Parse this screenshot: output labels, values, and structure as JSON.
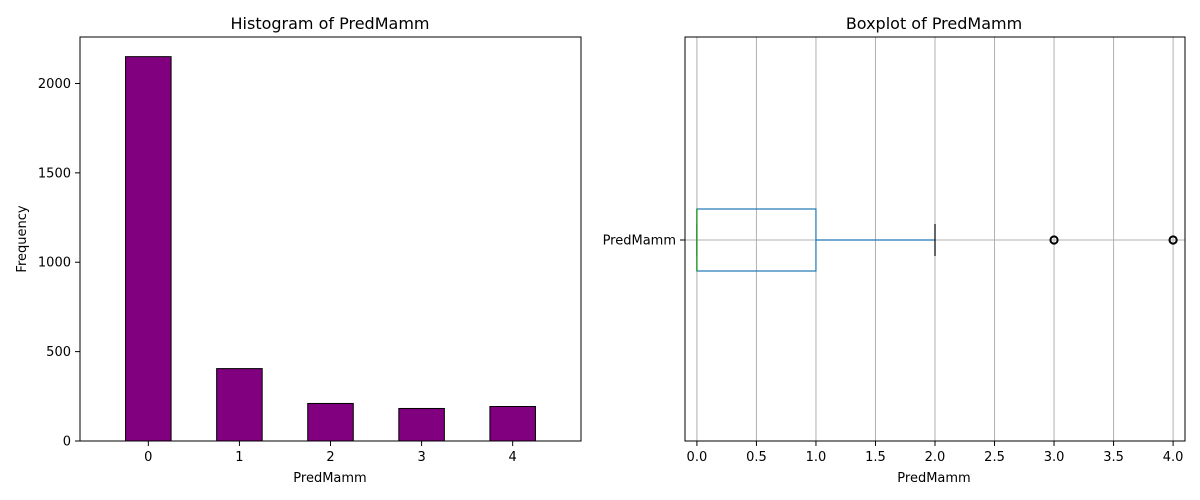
{
  "chart_data": [
    {
      "type": "bar",
      "title": "Histogram of PredMamm",
      "xlabel": "PredMamm",
      "ylabel": "Frequency",
      "categories": [
        "0",
        "1",
        "2",
        "3",
        "4"
      ],
      "values": [
        2150,
        405,
        210,
        182,
        193
      ],
      "ylim": [
        0,
        2260
      ],
      "yticks": [
        0,
        500,
        1000,
        1500,
        2000
      ],
      "bar_color": "#800080",
      "edge_color": "#000000",
      "grid": false
    },
    {
      "type": "boxplot",
      "title": "Boxplot of PredMamm",
      "xlabel": "PredMamm",
      "category_label": "PredMamm",
      "xlim": [
        -0.1,
        4.1
      ],
      "xticks": [
        0.0,
        0.5,
        1.0,
        1.5,
        2.0,
        2.5,
        3.0,
        3.5,
        4.0
      ],
      "xtick_labels": [
        "0.0",
        "0.5",
        "1.0",
        "1.5",
        "2.0",
        "2.5",
        "3.0",
        "3.5",
        "4.0"
      ],
      "box": {
        "whisker_low": 0,
        "q1": 0,
        "median": 0,
        "q3": 1,
        "whisker_high": 2
      },
      "outliers": [
        3,
        4
      ],
      "box_color": "#1f77b4",
      "median_color": "#2ca02c",
      "grid": true
    }
  ]
}
